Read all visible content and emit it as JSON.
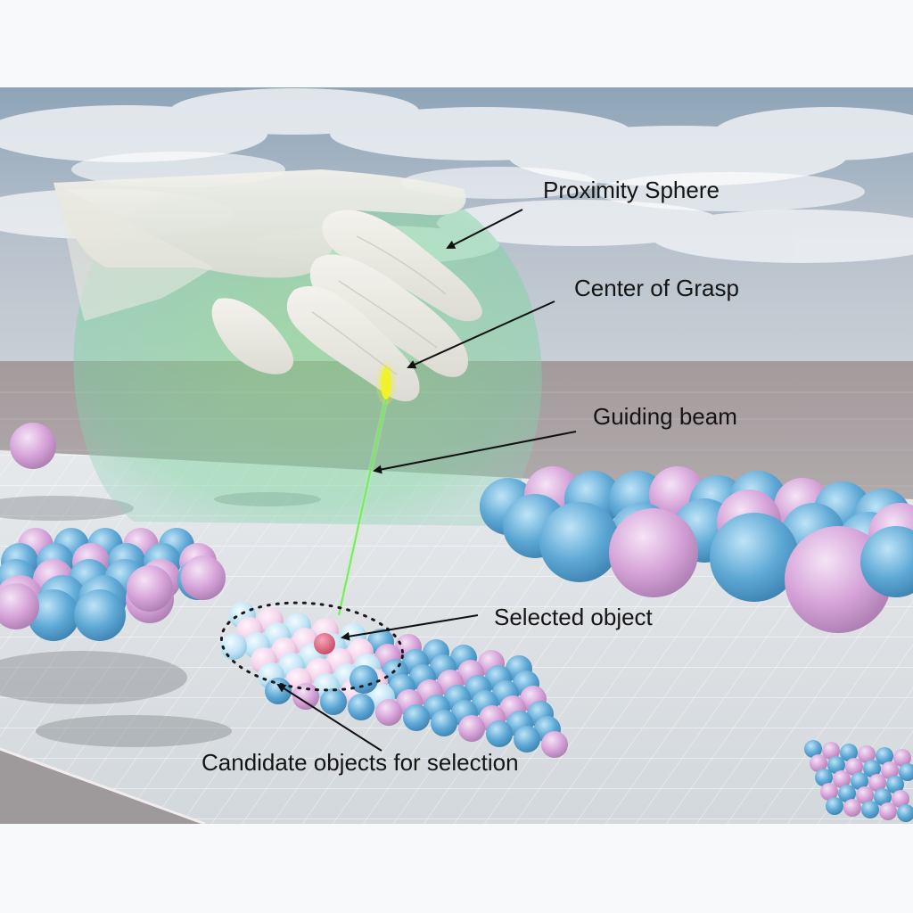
{
  "annotations": {
    "proximity_sphere": "Proximity Sphere",
    "center_of_grasp": "Center of Grasp",
    "guiding_beam": "Guiding beam",
    "selected_object": "Selected object",
    "candidate_objects": "Candidate objects for selection"
  },
  "colors": {
    "ball_blue": "#5fa9d6",
    "ball_pink": "#d6a3d9",
    "selected_ball": "#e35a7e",
    "proximity_sphere": "#7fdc82",
    "guiding_beam": "#62e34a",
    "grasp_center": "#f0f32a",
    "sky_top": "#8ea4b8",
    "floor": "#d9dde0"
  },
  "icons": {
    "hand": "hand-model-icon"
  }
}
